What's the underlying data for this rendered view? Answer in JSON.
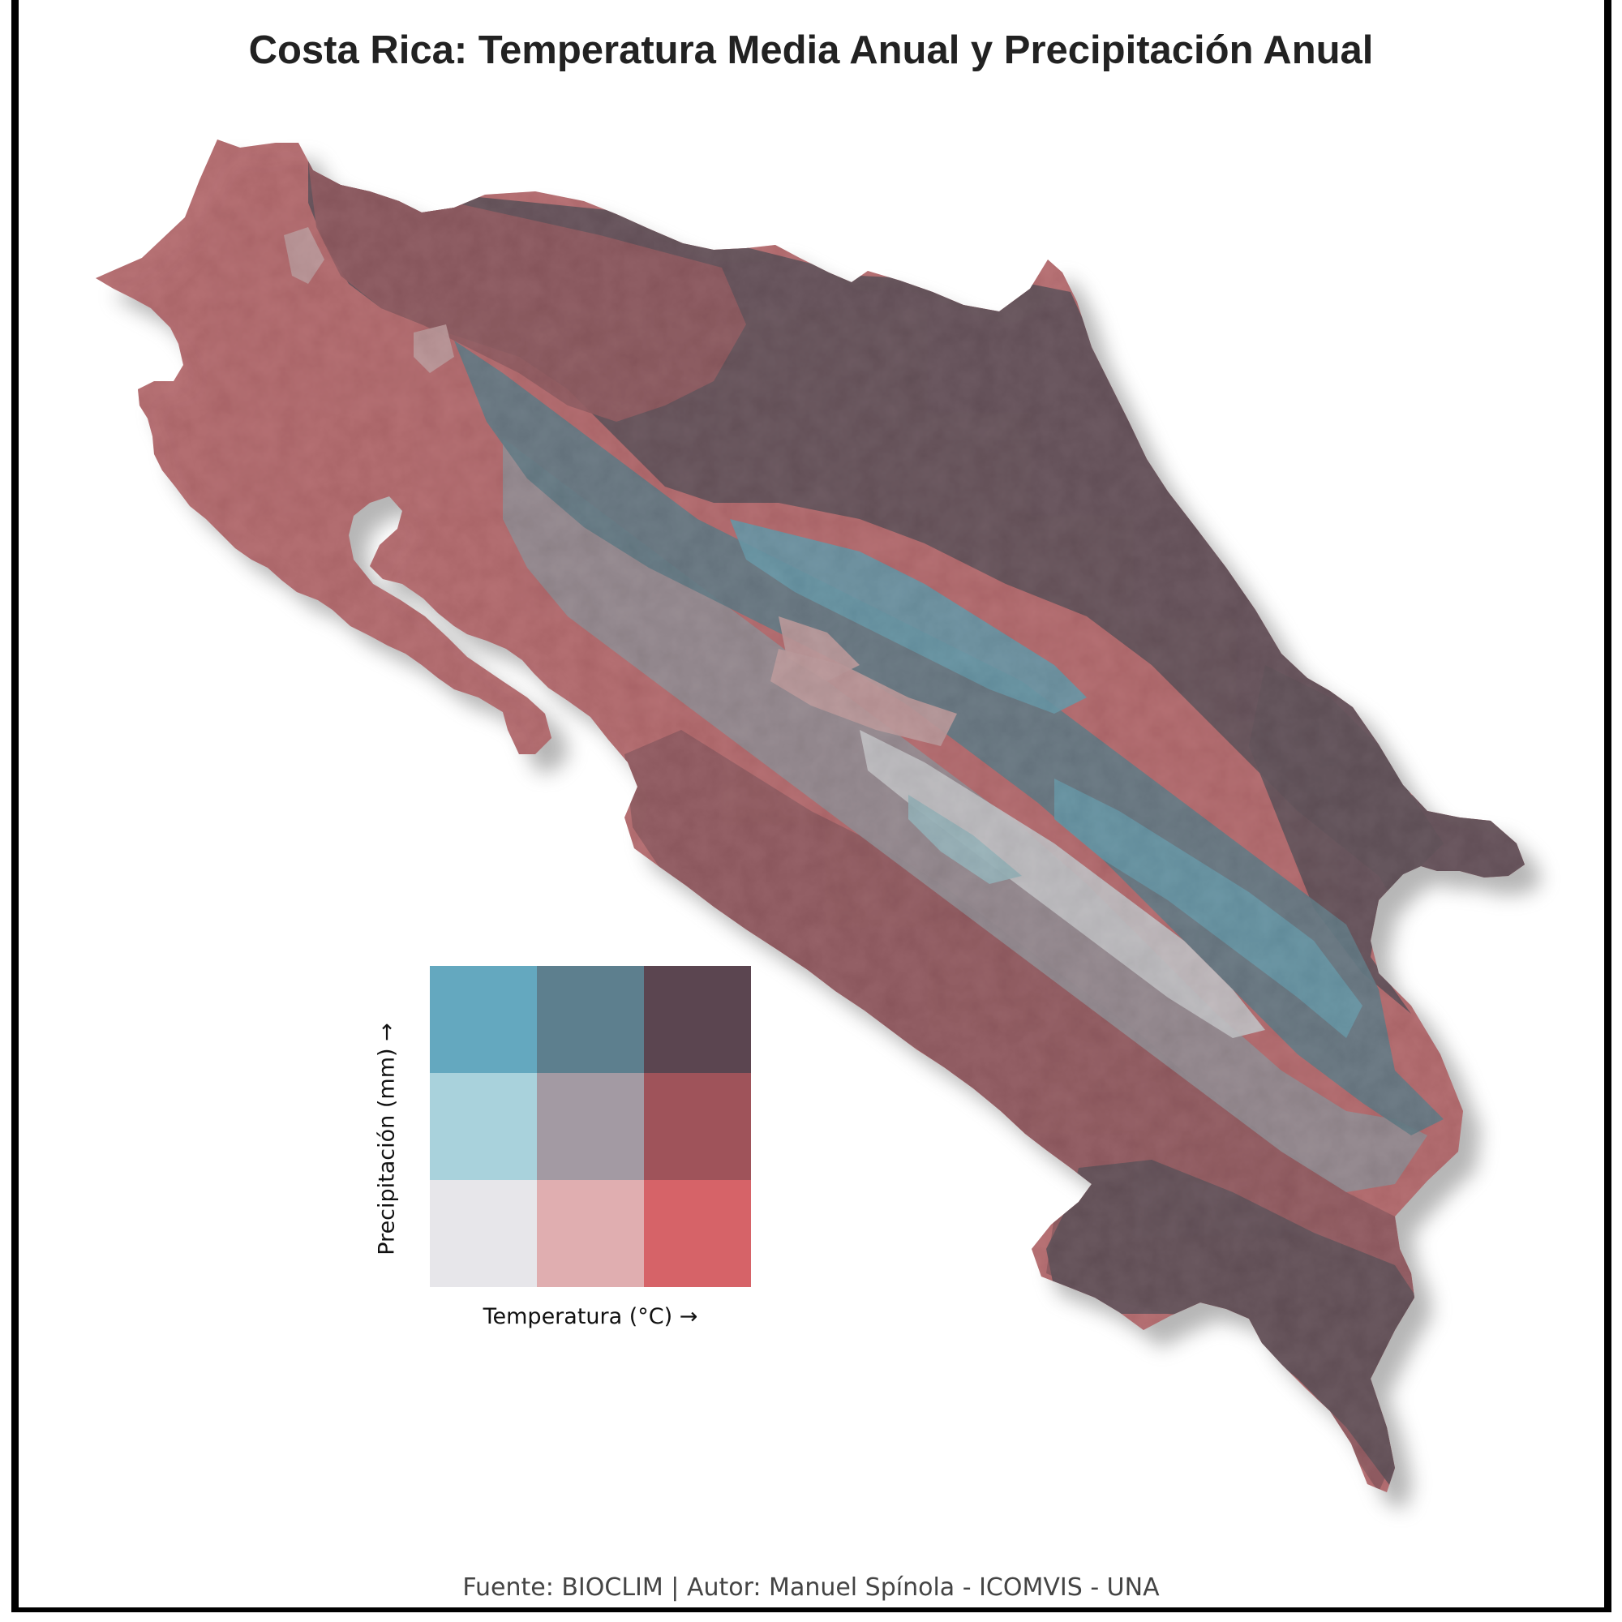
{
  "title": "Costa Rica: Temperatura Media Anual y Precipitación Anual",
  "caption": "Fuente: BIOCLIM | Autor: Manuel Spínola - ICOMVIS - UNA",
  "legend": {
    "x_label": "Temperatura (°C) →",
    "y_label": "Precipitación (mm) →",
    "rows": [
      [
        {
          "color": "#64a8bf"
        },
        {
          "color": "#5d7f8e"
        },
        {
          "color": "#5b4550"
        }
      ],
      [
        {
          "color": "#a9d2dc"
        },
        {
          "color": "#a39aa3"
        },
        {
          "color": "#9f535a"
        }
      ],
      [
        {
          "color": "#e7e6ea"
        },
        {
          "color": "#e0aeb0"
        },
        {
          "color": "#d66368"
        }
      ]
    ]
  },
  "map_colors": {
    "hot_dry": "#d66368",
    "hot_mid": "#9f535a",
    "hot_wet": "#5b4550",
    "mid_dry": "#e0aeb0",
    "mid_mid": "#a39aa3",
    "mid_wet": "#5d7f8e",
    "cool_dry": "#e7e6ea",
    "cool_mid": "#a9d2dc",
    "cool_wet": "#64a8bf"
  }
}
